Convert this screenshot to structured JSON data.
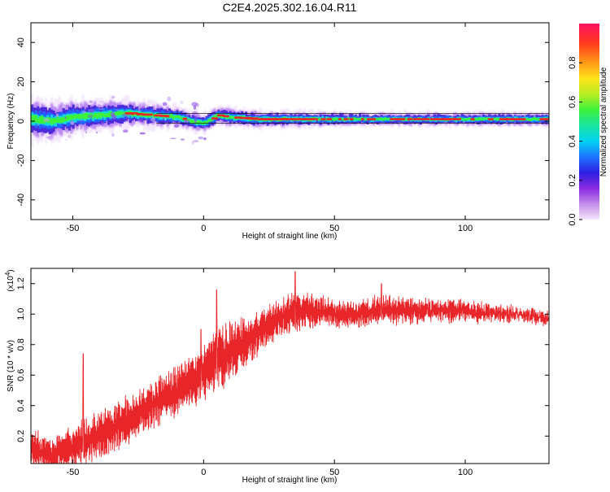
{
  "title": "C2E4.2025.302.16.04.R11",
  "colors": {
    "snr_line": "#e8262a",
    "ridge": "#e8262a",
    "axis": "#000000",
    "background": "#ffffff"
  },
  "chart_data": [
    {
      "type": "heatmap",
      "title": "C2E4.2025.302.16.04.R11",
      "xlabel": "Height of straight line (km)",
      "ylabel": "Frequency (Hz)",
      "xlim": [
        -66,
        132
      ],
      "ylim": [
        -50,
        50
      ],
      "xticks": [
        -50,
        0,
        50,
        100
      ],
      "yticks": [
        -40,
        -20,
        0,
        20,
        40
      ],
      "xtick_labels": [
        "-50",
        "0",
        "50",
        "100"
      ],
      "ytick_labels": [
        "-40",
        "-20",
        "0",
        "20",
        "40"
      ],
      "colorbar": {
        "label": "Normalized spectral amplitude",
        "range": [
          0,
          1
        ],
        "ticks": [
          0.0,
          0.2,
          0.4,
          0.6,
          0.8
        ],
        "tick_labels": [
          "0.0",
          "0.2",
          "0.4",
          "0.6",
          "0.8"
        ]
      },
      "band": {
        "description_free": true,
        "center_points": [
          [
            -66,
            1
          ],
          [
            -58,
            0
          ],
          [
            -50,
            2
          ],
          [
            -40,
            3
          ],
          [
            -30,
            4
          ],
          [
            -20,
            3
          ],
          [
            -10,
            2
          ],
          [
            -5,
            0
          ],
          [
            0,
            -1
          ],
          [
            5,
            3
          ],
          [
            10,
            2
          ],
          [
            20,
            1
          ],
          [
            40,
            1
          ],
          [
            60,
            1
          ],
          [
            80,
            1
          ],
          [
            100,
            1
          ],
          [
            132,
            1
          ]
        ],
        "half_width_points": [
          [
            -66,
            6
          ],
          [
            -50,
            5
          ],
          [
            -30,
            4
          ],
          [
            -10,
            3
          ],
          [
            20,
            2.5
          ],
          [
            60,
            2
          ],
          [
            132,
            2
          ]
        ],
        "guide_lines_hz": [
          -1,
          4
        ]
      }
    },
    {
      "type": "line",
      "xlabel": "Height of straight line (km)",
      "ylabel": "SNR (10 * v/v)",
      "y_multiplier": "(x10",
      "y_multiplier_exp": "4",
      "y_multiplier_close": ")",
      "xlim": [
        -66,
        132
      ],
      "ylim": [
        0.02,
        1.3
      ],
      "xticks": [
        -50,
        0,
        50,
        100
      ],
      "yticks": [
        0.2,
        0.4,
        0.6,
        0.8,
        1.0,
        1.2
      ],
      "xtick_labels": [
        "-50",
        "0",
        "50",
        "100"
      ],
      "ytick_labels": [
        "0.2",
        "0.4",
        "0.6",
        "0.8",
        "1.0",
        "1.2"
      ],
      "series": [
        {
          "name": "SNR",
          "x": [
            -66,
            -60,
            -55,
            -50,
            -45,
            -40,
            -35,
            -30,
            -25,
            -20,
            -15,
            -10,
            -5,
            0,
            5,
            10,
            15,
            20,
            25,
            30,
            35,
            40,
            45,
            50,
            55,
            60,
            65,
            70,
            75,
            80,
            85,
            90,
            95,
            100,
            105,
            110,
            115,
            120,
            125,
            132
          ],
          "y": [
            0.12,
            0.08,
            0.09,
            0.12,
            0.16,
            0.2,
            0.24,
            0.29,
            0.34,
            0.4,
            0.45,
            0.5,
            0.56,
            0.62,
            0.7,
            0.76,
            0.8,
            0.86,
            0.93,
            0.98,
            1.02,
            1.03,
            1.02,
            1.0,
            1.0,
            1.01,
            1.02,
            1.03,
            1.03,
            1.02,
            1.03,
            1.03,
            1.02,
            1.02,
            1.01,
            1.01,
            1.0,
            1.0,
            0.99,
            0.97
          ],
          "noise_amp": [
            0.1,
            0.09,
            0.1,
            0.12,
            0.13,
            0.13,
            0.13,
            0.13,
            0.12,
            0.12,
            0.12,
            0.13,
            0.14,
            0.16,
            0.18,
            0.16,
            0.14,
            0.12,
            0.1,
            0.1,
            0.1,
            0.09,
            0.08,
            0.07,
            0.07,
            0.07,
            0.07,
            0.07,
            0.07,
            0.06,
            0.06,
            0.06,
            0.06,
            0.05,
            0.05,
            0.04,
            0.04,
            0.03,
            0.03,
            0.03
          ],
          "peaks": [
            [
              -46,
              0.74
            ],
            [
              5,
              1.16
            ],
            [
              35,
              1.28
            ],
            [
              -1,
              0.9
            ],
            [
              68,
              1.2
            ]
          ]
        }
      ]
    }
  ]
}
